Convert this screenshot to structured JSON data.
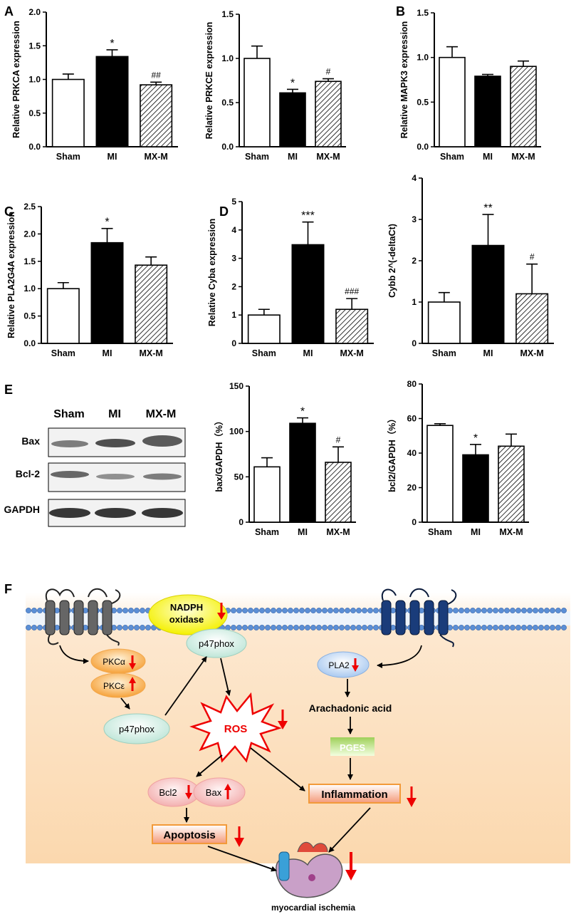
{
  "panel_letters": [
    "A",
    "B",
    "C",
    "D",
    "E",
    "F"
  ],
  "colors": {
    "bar_fill": [
      "#ffffff",
      "#000000",
      "hatch"
    ],
    "arrow": "#ee1111",
    "background_band": "#fbe0c0"
  },
  "chart_data": [
    {
      "type": "bar",
      "ylabel": "Relative PRKCA expression",
      "categories": [
        "Sham",
        "MI",
        "MX-M"
      ],
      "values": [
        1.0,
        1.34,
        0.92
      ],
      "errors": [
        0.08,
        0.1,
        0.04
      ],
      "marks": [
        "",
        "*",
        "##"
      ],
      "ylim": [
        0,
        2.0
      ],
      "ticks": [
        "0.0",
        "0.5",
        "1.0",
        "1.5",
        "2.0"
      ]
    },
    {
      "type": "bar",
      "ylabel": "Relative PRKCE expression",
      "categories": [
        "Sham",
        "MI",
        "MX-M"
      ],
      "values": [
        1.0,
        0.61,
        0.74
      ],
      "errors": [
        0.14,
        0.04,
        0.03
      ],
      "marks": [
        "",
        "*",
        "#"
      ],
      "ylim": [
        0,
        1.5
      ],
      "ticks": [
        "0.0",
        "0.5",
        "1.0",
        "1.5"
      ]
    },
    {
      "type": "bar",
      "ylabel": "Relative MAPK3 expression",
      "categories": [
        "Sham",
        "MI",
        "MX-M"
      ],
      "values": [
        1.0,
        0.79,
        0.9
      ],
      "errors": [
        0.12,
        0.02,
        0.06
      ],
      "marks": [
        "",
        "",
        ""
      ],
      "ylim": [
        0,
        1.5
      ],
      "ticks": [
        "0.0",
        "0.5",
        "1.0",
        "1.5"
      ]
    },
    {
      "type": "bar",
      "ylabel": "Relative PLA2G4A expression",
      "categories": [
        "Sham",
        "MI",
        "MX-M"
      ],
      "values": [
        1.0,
        1.84,
        1.43
      ],
      "errors": [
        0.11,
        0.26,
        0.15
      ],
      "marks": [
        "",
        "*",
        ""
      ],
      "ylim": [
        0,
        2.5
      ],
      "ticks": [
        "0.0",
        "0.5",
        "1.0",
        "1.5",
        "2.0",
        "2.5"
      ]
    },
    {
      "type": "bar",
      "ylabel": "Relative Cyba expression",
      "categories": [
        "Sham",
        "MI",
        "MX-M"
      ],
      "values": [
        1.0,
        3.48,
        1.2
      ],
      "errors": [
        0.2,
        0.8,
        0.38
      ],
      "marks": [
        "",
        "***",
        "###"
      ],
      "ylim": [
        0,
        5
      ],
      "ticks": [
        "0",
        "1",
        "2",
        "3",
        "4",
        "5"
      ]
    },
    {
      "type": "bar",
      "ylabel": "Cybb 2^(-deltaCt)",
      "categories": [
        "Sham",
        "MI",
        "MX-M"
      ],
      "values": [
        1.0,
        2.37,
        1.2
      ],
      "errors": [
        0.23,
        0.75,
        0.72
      ],
      "marks": [
        "",
        "**",
        "#"
      ],
      "ylim": [
        0,
        4
      ],
      "ticks": [
        "0",
        "1",
        "2",
        "3",
        "4"
      ]
    },
    {
      "type": "bar",
      "ylabel": "bax/GAPDH（%）",
      "categories": [
        "Sham",
        "MI",
        "MX-M"
      ],
      "values": [
        61,
        109,
        66
      ],
      "errors": [
        10,
        6,
        17
      ],
      "marks": [
        "",
        "*",
        "#"
      ],
      "ylim": [
        0,
        150
      ],
      "ticks": [
        "0",
        "50",
        "100",
        "150"
      ]
    },
    {
      "type": "bar",
      "ylabel": "bcl2/GAPDH（%）",
      "categories": [
        "Sham",
        "MI",
        "MX-M"
      ],
      "values": [
        56,
        39,
        44
      ],
      "errors": [
        1,
        6,
        7
      ],
      "marks": [
        "",
        "*",
        ""
      ],
      "ylim": [
        0,
        80
      ],
      "ticks": [
        "0",
        "20",
        "40",
        "60",
        "80"
      ]
    }
  ],
  "blot": {
    "lanes": [
      "Sham",
      "MI",
      "MX-M"
    ],
    "rows": [
      "Bax",
      "Bcl-2",
      "GAPDH"
    ]
  },
  "pathway": {
    "nadph": "NADPH",
    "oxidase": "oxidase",
    "p47_top": "p47phox",
    "p47_left": "p47phox",
    "pkca": "PKCα",
    "pkce": "PKCε",
    "ros": "ROS",
    "pla2": "PLA2",
    "arachidonic": "Arachadonic acid",
    "pges": "PGES",
    "inflammation": "Inflammation",
    "bcl2": "Bcl2",
    "bax": "Bax",
    "apoptosis": "Apoptosis",
    "outcome": "myocardial ischemia"
  }
}
